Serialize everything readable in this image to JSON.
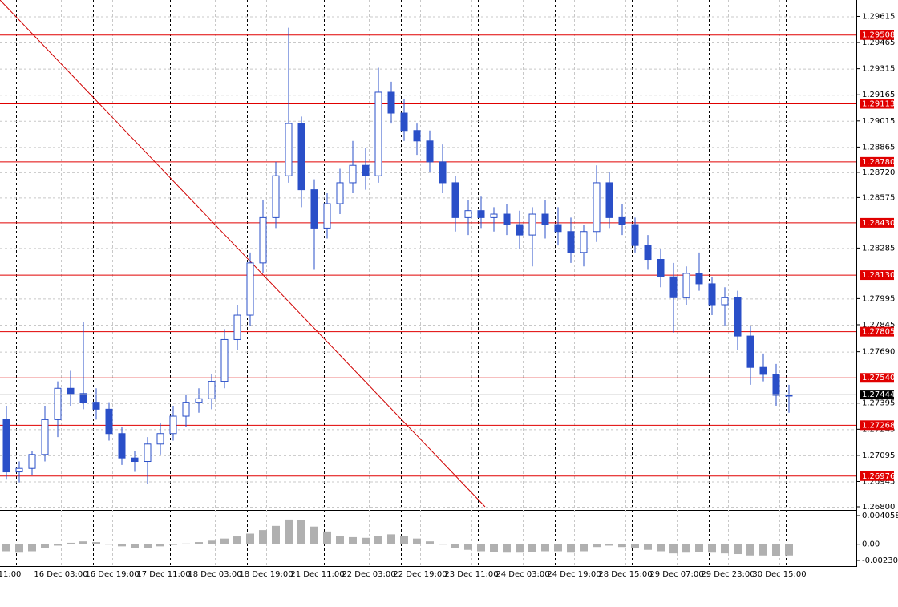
{
  "chart_data": {
    "type": "candlestick",
    "ylim": [
      1.268,
      1.297
    ],
    "yticks": [
      1.29615,
      1.29465,
      1.29315,
      1.29165,
      1.29015,
      1.28865,
      {
        "value": 1.2872,
        "label": "1.28720"
      },
      1.28575,
      1.28285,
      1.27995,
      1.27845,
      {
        "value": 1.2769,
        "label": "1.27690"
      },
      1.27395,
      1.27245,
      1.27095,
      1.26945,
      {
        "value": 1.268,
        "label": "1.26800"
      }
    ],
    "grid": true,
    "xtick_labels": [
      "11:00",
      "16 Dec 03:00",
      "16 Dec 19:00",
      "17 Dec 11:00",
      "18 Dec 03:00",
      "18 Dec 19:00",
      "21 Dec 11:00",
      "22 Dec 03:00",
      "22 Dec 19:00",
      "23 Dec 11:00",
      "24 Dec 03:00",
      "24 Dec 19:00",
      "28 Dec 15:00",
      "29 Dec 07:00",
      "29 Dec 23:00",
      "30 Dec 15:00"
    ],
    "color": "#2a4fc8",
    "ohlc": [
      [
        1.273,
        1.2738,
        1.2696,
        1.27
      ],
      [
        1.27,
        1.2706,
        1.2694,
        1.2702
      ],
      [
        1.2702,
        1.2712,
        1.2698,
        1.271
      ],
      [
        1.271,
        1.2738,
        1.2706,
        1.273
      ],
      [
        1.273,
        1.2752,
        1.272,
        1.2748
      ],
      [
        1.2748,
        1.2758,
        1.2738,
        1.2745
      ],
      [
        1.2745,
        1.2786,
        1.2736,
        1.274
      ],
      [
        1.274,
        1.2748,
        1.273,
        1.2736
      ],
      [
        1.2736,
        1.274,
        1.2718,
        1.2722
      ],
      [
        1.2722,
        1.2726,
        1.2704,
        1.2708
      ],
      [
        1.2708,
        1.2712,
        1.27,
        1.2706
      ],
      [
        1.2706,
        1.272,
        1.2693,
        1.2716
      ],
      [
        1.2716,
        1.2728,
        1.271,
        1.2722
      ],
      [
        1.2722,
        1.2738,
        1.2718,
        1.2732
      ],
      [
        1.2732,
        1.2744,
        1.2726,
        1.274
      ],
      [
        1.274,
        1.2748,
        1.2734,
        1.2742
      ],
      [
        1.2742,
        1.2756,
        1.2736,
        1.2752
      ],
      [
        1.2752,
        1.2782,
        1.2748,
        1.2776
      ],
      [
        1.2776,
        1.2796,
        1.277,
        1.279
      ],
      [
        1.279,
        1.2826,
        1.2784,
        1.282
      ],
      [
        1.282,
        1.2856,
        1.2814,
        1.2846
      ],
      [
        1.2846,
        1.2878,
        1.284,
        1.287
      ],
      [
        1.287,
        1.2955,
        1.2866,
        1.29
      ],
      [
        1.29,
        1.2904,
        1.2852,
        1.2862
      ],
      [
        1.2862,
        1.2868,
        1.2816,
        1.284
      ],
      [
        1.284,
        1.286,
        1.2834,
        1.2854
      ],
      [
        1.2854,
        1.2874,
        1.2848,
        1.2866
      ],
      [
        1.2866,
        1.289,
        1.286,
        1.2876
      ],
      [
        1.2876,
        1.2886,
        1.2862,
        1.287
      ],
      [
        1.287,
        1.2932,
        1.2866,
        1.2918
      ],
      [
        1.2918,
        1.2924,
        1.29,
        1.2906
      ],
      [
        1.2906,
        1.2914,
        1.289,
        1.2896
      ],
      [
        1.2896,
        1.29,
        1.2882,
        1.289
      ],
      [
        1.289,
        1.2896,
        1.2872,
        1.2878
      ],
      [
        1.2878,
        1.2888,
        1.286,
        1.2866
      ],
      [
        1.2866,
        1.287,
        1.2838,
        1.2846
      ],
      [
        1.2846,
        1.2856,
        1.2836,
        1.285
      ],
      [
        1.285,
        1.2858,
        1.284,
        1.2846
      ],
      [
        1.2846,
        1.2852,
        1.2838,
        1.2848
      ],
      [
        1.2848,
        1.2854,
        1.2836,
        1.2842
      ],
      [
        1.2842,
        1.285,
        1.2828,
        1.2836
      ],
      [
        1.2836,
        1.2852,
        1.2818,
        1.2848
      ],
      [
        1.2848,
        1.2856,
        1.2834,
        1.2842
      ],
      [
        1.2842,
        1.2852,
        1.283,
        1.2838
      ],
      [
        1.2838,
        1.2846,
        1.282,
        1.2826
      ],
      [
        1.2826,
        1.2842,
        1.2818,
        1.2838
      ],
      [
        1.2838,
        1.2876,
        1.2832,
        1.2866
      ],
      [
        1.2866,
        1.2872,
        1.284,
        1.2846
      ],
      [
        1.2846,
        1.2854,
        1.2836,
        1.2842
      ],
      [
        1.2842,
        1.2846,
        1.2826,
        1.283
      ],
      [
        1.283,
        1.2836,
        1.2816,
        1.2822
      ],
      [
        1.2822,
        1.2828,
        1.2806,
        1.2812
      ],
      [
        1.2812,
        1.282,
        1.278,
        1.28
      ],
      [
        1.28,
        1.2818,
        1.2796,
        1.2814
      ],
      [
        1.2814,
        1.2826,
        1.2804,
        1.2808
      ],
      [
        1.2808,
        1.2812,
        1.279,
        1.2796
      ],
      [
        1.2796,
        1.2806,
        1.2784,
        1.28
      ],
      [
        1.28,
        1.2804,
        1.277,
        1.2778
      ],
      [
        1.2778,
        1.2784,
        1.275,
        1.276
      ],
      [
        1.276,
        1.2768,
        1.2752,
        1.2756
      ],
      [
        1.2756,
        1.2762,
        1.2738,
        1.2744
      ],
      [
        1.2744,
        1.275,
        1.2734,
        1.2744
      ]
    ],
    "levels": [
      1.29508,
      1.29113,
      {
        "value": 1.2878,
        "label": "1.28780"
      },
      {
        "value": 1.2843,
        "label": "1.28430"
      },
      {
        "value": 1.2813,
        "label": "1.28130"
      },
      1.27805,
      {
        "value": 1.2754,
        "label": "1.27540"
      },
      1.27268,
      1.26976
    ],
    "level_color": "#e00000",
    "current_price": 1.27444,
    "indicator": {
      "type": "histogram",
      "ylim": [
        -0.002307,
        0.004058
      ],
      "yticks": [
        0.004058,
        {
          "value": 0,
          "label": "0.00"
        },
        -0.002307
      ],
      "color": "#b0b0b0",
      "values": [
        -0.001,
        -0.0012,
        -0.001,
        -0.0006,
        -0.0002,
        0.0002,
        0.0004,
        0.0003,
        0.0,
        -0.0003,
        -0.0005,
        -0.0005,
        -0.0003,
        -0.0001,
        0.0001,
        0.0003,
        0.0005,
        0.0008,
        0.0011,
        0.0015,
        0.002,
        0.0026,
        0.0035,
        0.0034,
        0.0025,
        0.0018,
        0.0012,
        0.001,
        0.0009,
        0.0012,
        0.0014,
        0.0012,
        0.0008,
        0.0004,
        0.0,
        -0.0005,
        -0.0008,
        -0.001,
        -0.0011,
        -0.0012,
        -0.0012,
        -0.0011,
        -0.001,
        -0.001,
        -0.0012,
        -0.001,
        -0.0004,
        -0.0002,
        -0.0004,
        -0.0006,
        -0.0008,
        -0.001,
        -0.0013,
        -0.0012,
        -0.0011,
        -0.0012,
        -0.0013,
        -0.0014,
        -0.0016,
        -0.0016,
        -0.0017,
        -0.0016
      ]
    }
  }
}
